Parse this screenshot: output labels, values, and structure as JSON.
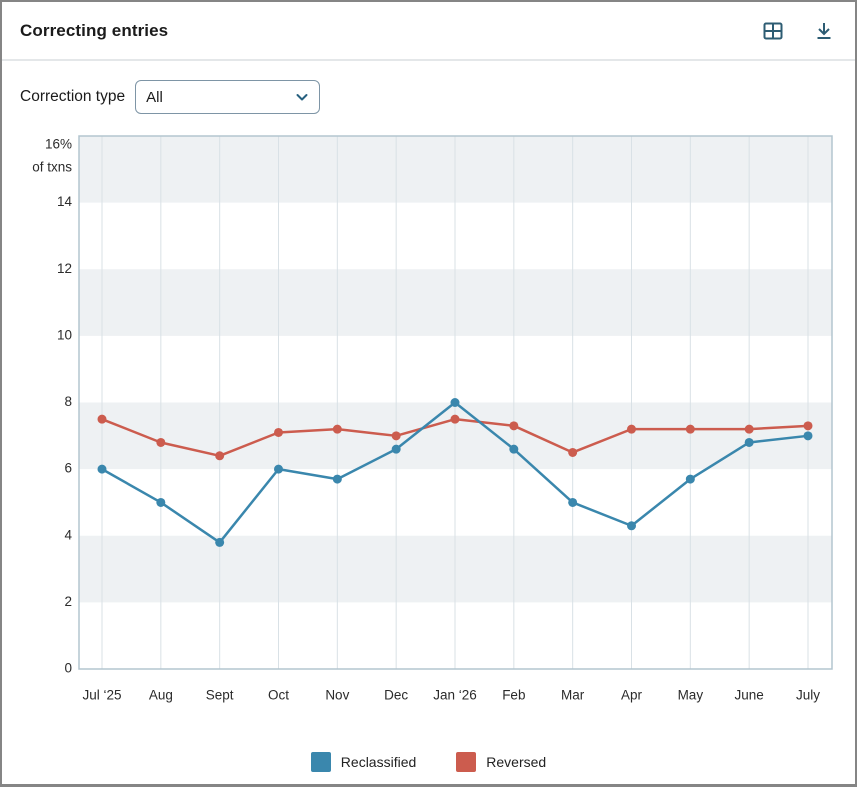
{
  "header": {
    "title": "Correcting entries"
  },
  "filter": {
    "label": "Correction type",
    "selected": "All"
  },
  "chart_data": {
    "type": "line",
    "title": "Correcting entries",
    "categories": [
      "Jul ‘25",
      "Aug",
      "Sept",
      "Oct",
      "Nov",
      "Dec",
      "Jan ‘26",
      "Feb",
      "Mar",
      "Apr",
      "May",
      "June",
      "July"
    ],
    "series": [
      {
        "name": "Reclassified",
        "color": "#3a87ad",
        "values": [
          6.0,
          5.0,
          3.8,
          6.0,
          5.7,
          6.6,
          8.0,
          6.6,
          5.0,
          4.3,
          5.7,
          6.8,
          7.0
        ]
      },
      {
        "name": "Reversed",
        "color": "#cc5c4e",
        "values": [
          7.5,
          6.8,
          6.4,
          7.1,
          7.2,
          7.0,
          7.5,
          7.3,
          6.5,
          7.2,
          7.2,
          7.2,
          7.3
        ]
      }
    ],
    "ylim": [
      0,
      16
    ],
    "yticks": [
      {
        "value": 16,
        "label": "16%",
        "sublabel": "of txns"
      },
      {
        "value": 14,
        "label": "14"
      },
      {
        "value": 12,
        "label": "12"
      },
      {
        "value": 10,
        "label": "10"
      },
      {
        "value": 8,
        "label": "8"
      },
      {
        "value": 6,
        "label": "6"
      },
      {
        "value": 4,
        "label": "4"
      },
      {
        "value": 2,
        "label": "2"
      },
      {
        "value": 0,
        "label": "0"
      }
    ],
    "bands": [
      [
        16,
        14
      ],
      [
        12,
        10
      ],
      [
        8,
        6
      ],
      [
        4,
        2
      ]
    ],
    "grid": "vertical-monthly",
    "legend_position": "bottom"
  },
  "colors": {
    "icon": "#2d5c73",
    "band": "#eef1f3",
    "gridline": "#d9e1e6",
    "plot_border": "#b3c5cf",
    "tick_text": "#2b2b2b"
  }
}
